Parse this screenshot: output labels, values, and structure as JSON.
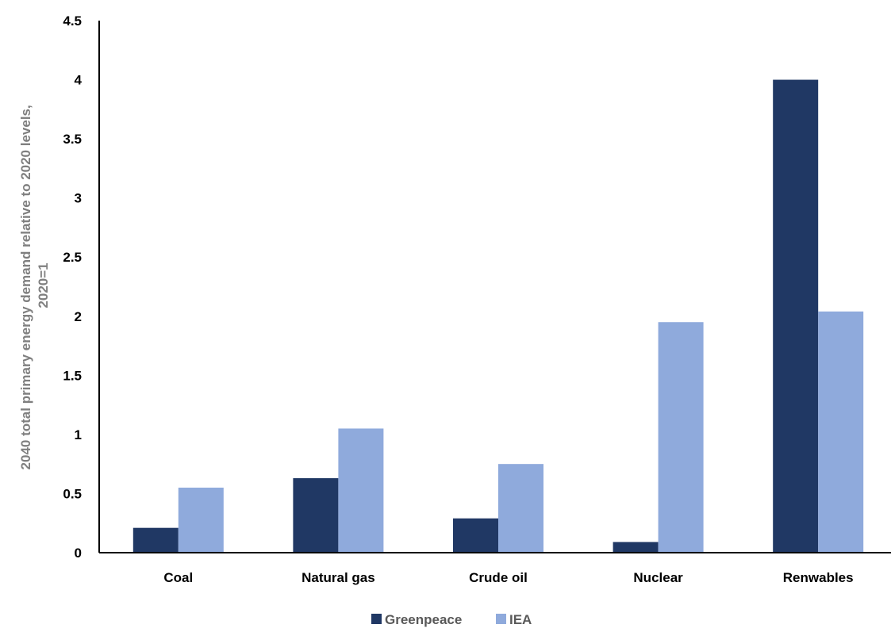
{
  "chart_data": {
    "type": "bar",
    "ylabel_lines": [
      "2040 total primary energy demand relative to 2020 levels,",
      "2020=1"
    ],
    "categories": [
      "Coal",
      "Natural gas",
      "Crude oil",
      "Nuclear",
      "Renwables"
    ],
    "series": [
      {
        "name": "Greenpeace",
        "color": "#203864",
        "values": [
          0.21,
          0.63,
          0.29,
          0.09,
          4.0
        ]
      },
      {
        "name": "IEA",
        "color": "#8faadc",
        "values": [
          0.55,
          1.05,
          0.75,
          1.95,
          2.04
        ]
      }
    ],
    "ylim": [
      0,
      4.5
    ],
    "yticks": [
      0,
      0.5,
      1,
      1.5,
      2,
      2.5,
      3,
      3.5,
      4,
      4.5
    ],
    "ytick_labels": [
      "0",
      "0.5",
      "1",
      "1.5",
      "2",
      "2.5",
      "3",
      "3.5",
      "4",
      "4.5"
    ],
    "grid": false,
    "legend_position": "bottom"
  }
}
